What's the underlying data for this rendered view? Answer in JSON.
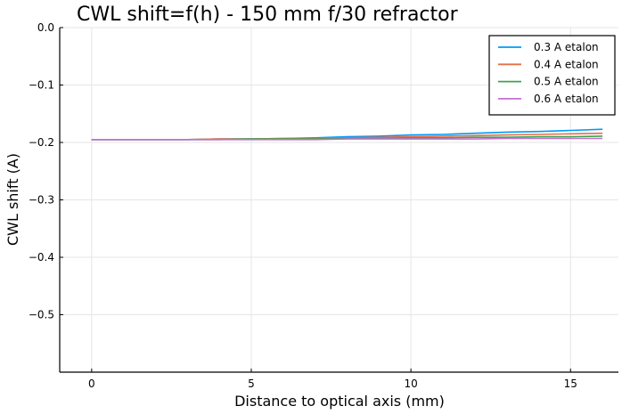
{
  "chart_data": {
    "type": "line",
    "title": "CWL shift=f(h) - 150 mm f/30 refractor",
    "xlabel": "Distance to optical axis (mm)",
    "ylabel": "CWL shift (A)",
    "xlim": [
      -1,
      16.5
    ],
    "ylim": [
      -0.6,
      0.0
    ],
    "xticks": [
      0,
      5,
      10,
      15
    ],
    "xtick_labels": [
      "0",
      "5",
      "10",
      "15"
    ],
    "yticks": [
      0.0,
      -0.1,
      -0.2,
      -0.3,
      -0.4,
      -0.5
    ],
    "ytick_labels": [
      "0.0",
      "−0.1",
      "−0.2",
      "−0.3",
      "−0.4",
      "−0.5"
    ],
    "grid": true,
    "legend_position": "top-right",
    "series": [
      {
        "name": "0.3 A etalon",
        "color": "#009AFA",
        "x": [
          0,
          1,
          2,
          3,
          4,
          5,
          6,
          7,
          8,
          9,
          10,
          11,
          12,
          13,
          14,
          15,
          16
        ],
        "y": [
          -0.195,
          -0.195,
          -0.195,
          -0.195,
          -0.194,
          -0.194,
          -0.193,
          -0.192,
          -0.19,
          -0.189,
          -0.187,
          -0.186,
          -0.184,
          -0.182,
          -0.181,
          -0.179,
          -0.177
        ]
      },
      {
        "name": "0.4 A etalon",
        "color": "#E36F47",
        "x": [
          0,
          1,
          2,
          3,
          4,
          5,
          6,
          7,
          8,
          9,
          10,
          11,
          12,
          13,
          14,
          15,
          16
        ],
        "y": [
          -0.195,
          -0.195,
          -0.195,
          -0.195,
          -0.194,
          -0.194,
          -0.193,
          -0.193,
          -0.192,
          -0.191,
          -0.19,
          -0.189,
          -0.188,
          -0.187,
          -0.186,
          -0.185,
          -0.184
        ]
      },
      {
        "name": "0.5 A etalon",
        "color": "#3EA44E",
        "x": [
          0,
          1,
          2,
          3,
          4,
          5,
          6,
          7,
          8,
          9,
          10,
          11,
          12,
          13,
          14,
          15,
          16
        ],
        "y": [
          -0.195,
          -0.195,
          -0.195,
          -0.195,
          -0.195,
          -0.194,
          -0.194,
          -0.194,
          -0.193,
          -0.193,
          -0.192,
          -0.192,
          -0.191,
          -0.191,
          -0.19,
          -0.19,
          -0.189
        ]
      },
      {
        "name": "0.6 A etalon",
        "color": "#C371D2",
        "x": [
          0,
          1,
          2,
          3,
          4,
          5,
          6,
          7,
          8,
          9,
          10,
          11,
          12,
          13,
          14,
          15,
          16
        ],
        "y": [
          -0.195,
          -0.195,
          -0.195,
          -0.195,
          -0.195,
          -0.195,
          -0.195,
          -0.195,
          -0.194,
          -0.194,
          -0.194,
          -0.194,
          -0.194,
          -0.193,
          -0.193,
          -0.193,
          -0.193
        ]
      }
    ]
  }
}
